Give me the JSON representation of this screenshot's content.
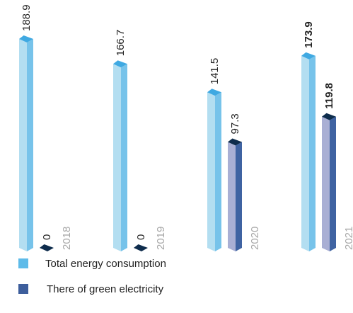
{
  "chart_data": {
    "type": "bar",
    "categories": [
      "2018",
      "2019",
      "2020",
      "2021"
    ],
    "series": [
      {
        "name": "Total energy consumption",
        "values": [
          188.9,
          166.7,
          141.5,
          173.9
        ]
      },
      {
        "name": "There of green electricity",
        "values": [
          0,
          0,
          97.3,
          119.8
        ]
      }
    ],
    "value_labels": [
      [
        "188.9",
        "166.7",
        "141.5",
        "173.9"
      ],
      [
        "0",
        "0",
        "97.3",
        "119.8"
      ]
    ],
    "bold_category": "2021",
    "ylim": [
      0,
      188.9
    ],
    "grid": false,
    "legend_position": "bottom-left"
  },
  "colors": {
    "total_front": "#b3def1",
    "total_side": "#77c3ea",
    "total_top": "#3fa9e2",
    "green_front": "#a9afd4",
    "green_side": "#3f63a2",
    "green_top": "#0e2c4c",
    "legend_total": "#5ebbe9",
    "legend_green": "#3d5e9c"
  }
}
